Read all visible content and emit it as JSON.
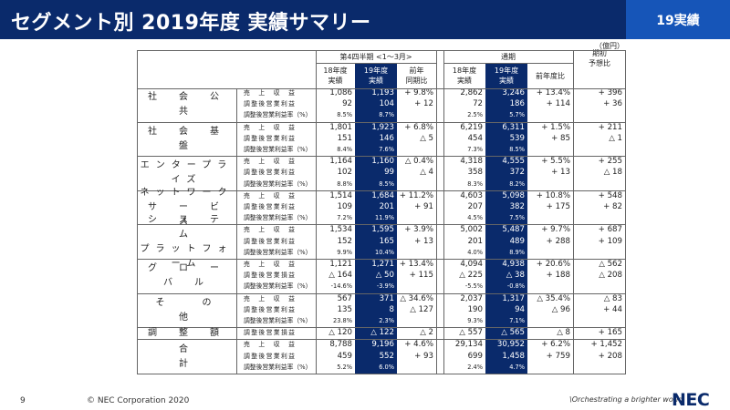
{
  "header": {
    "title": "セグメント別 2019年度 実績サマリー",
    "badge": "19実績"
  },
  "unit": "（億円）",
  "columns": {
    "q4_group": "第4四半期 <1～3月>",
    "full_group": "通期",
    "fy18_line1": "18年度",
    "fy18_line2": "実績",
    "fy19_line1": "19年度",
    "fy19_line2": "実績",
    "yoy_q_line1": "前年",
    "yoy_q_line2": "同期比",
    "yoy_full": "前年度比",
    "forecast_line1": "期初",
    "forecast_line2": "予想比"
  },
  "metric_labels": {
    "revenue": "売　上　収　益",
    "profit": "調整後営業利益",
    "loss": "調整後営業損益",
    "margin": "調整後営業利益率（%）"
  },
  "segments": [
    {
      "name_lines": [
        "社　会　公　共"
      ],
      "rows": [
        {
          "label": "revenue",
          "q18": "1,086",
          "q19": "1,193",
          "qyoy": "+ 9.8%",
          "f18": "2,862",
          "f19": "3,246",
          "fyoy": "+ 13.4%",
          "fc": "+ 396"
        },
        {
          "label": "profit",
          "q18": "92",
          "q19": "104",
          "qyoy": "+ 12",
          "f18": "72",
          "f19": "186",
          "fyoy": "+ 114",
          "fc": "+ 36"
        },
        {
          "label": "margin",
          "q18": "8.5%",
          "q19": "8.7%",
          "qyoy": "",
          "f18": "2.5%",
          "f19": "5.7%",
          "fyoy": "",
          "fc": ""
        }
      ]
    },
    {
      "name_lines": [
        "社　会　基　盤"
      ],
      "rows": [
        {
          "label": "revenue",
          "q18": "1,801",
          "q19": "1,923",
          "qyoy": "+ 6.8%",
          "f18": "6,219",
          "f19": "6,311",
          "fyoy": "+ 1.5%",
          "fc": "+ 211"
        },
        {
          "label": "profit",
          "q18": "151",
          "q19": "146",
          "qyoy": "△ 5",
          "f18": "454",
          "f19": "539",
          "fyoy": "+ 85",
          "fc": "△ 1"
        },
        {
          "label": "margin",
          "q18": "8.4%",
          "q19": "7.6%",
          "qyoy": "",
          "f18": "7.3%",
          "f19": "8.5%",
          "fyoy": "",
          "fc": ""
        }
      ]
    },
    {
      "name_lines": [
        "エンタープライズ"
      ],
      "rows": [
        {
          "label": "revenue",
          "q18": "1,164",
          "q19": "1,160",
          "qyoy": "△ 0.4%",
          "f18": "4,318",
          "f19": "4,555",
          "fyoy": "+ 5.5%",
          "fc": "+ 255"
        },
        {
          "label": "profit",
          "q18": "102",
          "q19": "99",
          "qyoy": "△ 4",
          "f18": "358",
          "f19": "372",
          "fyoy": "+ 13",
          "fc": "△ 18"
        },
        {
          "label": "margin",
          "q18": "8.8%",
          "q19": "8.5%",
          "qyoy": "",
          "f18": "8.3%",
          "f19": "8.2%",
          "fyoy": "",
          "fc": ""
        }
      ]
    },
    {
      "name_lines": [
        "ネットワーク",
        "サ　ー　ビ　ス"
      ],
      "rows": [
        {
          "label": "revenue",
          "q18": "1,514",
          "q19": "1,684",
          "qyoy": "+ 11.2%",
          "f18": "4,603",
          "f19": "5,098",
          "fyoy": "+ 10.8%",
          "fc": "+ 548"
        },
        {
          "label": "profit",
          "q18": "109",
          "q19": "201",
          "qyoy": "+ 91",
          "f18": "207",
          "f19": "382",
          "fyoy": "+ 175",
          "fc": "+ 82"
        },
        {
          "label": "margin",
          "q18": "7.2%",
          "q19": "11.9%",
          "qyoy": "",
          "f18": "4.5%",
          "f19": "7.5%",
          "fyoy": "",
          "fc": ""
        }
      ]
    },
    {
      "name_lines": [
        "シ　ス　テ　ム",
        "プラットフォーム"
      ],
      "rows": [
        {
          "label": "revenue",
          "q18": "1,534",
          "q19": "1,595",
          "qyoy": "+ 3.9%",
          "f18": "5,002",
          "f19": "5,487",
          "fyoy": "+ 9.7%",
          "fc": "+ 687"
        },
        {
          "label": "profit",
          "q18": "152",
          "q19": "165",
          "qyoy": "+ 13",
          "f18": "201",
          "f19": "489",
          "fyoy": "+ 288",
          "fc": "+ 109"
        },
        {
          "label": "margin",
          "q18": "9.9%",
          "q19": "10.4%",
          "qyoy": "",
          "f18": "4.0%",
          "f19": "8.9%",
          "fyoy": "",
          "fc": ""
        }
      ]
    },
    {
      "name_lines": [
        "グ　ロ　ー　バ　ル"
      ],
      "rows": [
        {
          "label": "revenue",
          "q18": "1,121",
          "q19": "1,271",
          "qyoy": "+ 13.4%",
          "f18": "4,094",
          "f19": "4,938",
          "fyoy": "+ 20.6%",
          "fc": "△ 562"
        },
        {
          "label": "loss",
          "q18": "△ 164",
          "q19": "△ 50",
          "qyoy": "+ 115",
          "f18": "△ 225",
          "f19": "△ 38",
          "fyoy": "+ 188",
          "fc": "△ 208"
        },
        {
          "label": "margin",
          "q18": "-14.6%",
          "q19": "-3.9%",
          "qyoy": "",
          "f18": "-5.5%",
          "f19": "-0.8%",
          "fyoy": "",
          "fc": ""
        }
      ]
    },
    {
      "name_lines": [
        "そ　　の　　他"
      ],
      "rows": [
        {
          "label": "revenue",
          "q18": "567",
          "q19": "371",
          "qyoy": "△ 34.6%",
          "f18": "2,037",
          "f19": "1,317",
          "fyoy": "△ 35.4%",
          "fc": "△ 83"
        },
        {
          "label": "profit",
          "q18": "135",
          "q19": "8",
          "qyoy": "△ 127",
          "f18": "190",
          "f19": "94",
          "fyoy": "△ 96",
          "fc": "+ 44"
        },
        {
          "label": "margin",
          "q18": "23.8%",
          "q19": "2.3%",
          "qyoy": "",
          "f18": "9.3%",
          "f19": "7.1%",
          "fyoy": "",
          "fc": ""
        }
      ]
    },
    {
      "name_lines": [
        "調　整　額"
      ],
      "rows": [
        {
          "label": "loss",
          "q18": "△ 120",
          "q19": "△ 122",
          "qyoy": "△ 2",
          "f18": "△ 557",
          "f19": "△ 565",
          "fyoy": "△ 8",
          "fc": "+ 165"
        }
      ]
    },
    {
      "name_lines": [
        "合　　　　　　　計"
      ],
      "rows": [
        {
          "label": "revenue",
          "q18": "8,788",
          "q19": "9,196",
          "qyoy": "+ 4.6%",
          "f18": "29,134",
          "f19": "30,952",
          "fyoy": "+ 6.2%",
          "fc": "+ 1,452"
        },
        {
          "label": "profit",
          "q18": "459",
          "q19": "552",
          "qyoy": "+ 93",
          "f18": "699",
          "f19": "1,458",
          "fyoy": "+ 759",
          "fc": "+ 208"
        },
        {
          "label": "margin",
          "q18": "5.2%",
          "q19": "6.0%",
          "qyoy": "",
          "f18": "2.4%",
          "f19": "4.7%",
          "fyoy": "",
          "fc": ""
        }
      ]
    }
  ],
  "footer": {
    "page": "9",
    "copyright": "© NEC Corporation 2020",
    "tagline": "\\Orchestrating a brighter world",
    "logo": "NEC"
  }
}
